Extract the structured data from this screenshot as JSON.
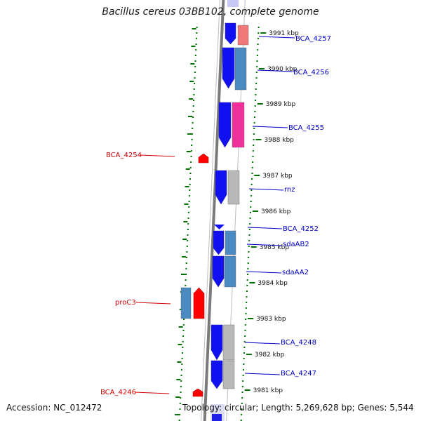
{
  "title": "Bacillus cereus 03BB102, complete genome",
  "accession": "Accession: NC_012472",
  "topology": "Topology: circular; Length: 5,269,628 bp; Genes: 5,544",
  "colors": {
    "forward_gene": "#1010f0",
    "blue_feature": "#4a8ac0",
    "pink_feature": "#f07878",
    "magenta_feature": "#f0309a",
    "gray_feature": "#b8b8b8",
    "reverse_gene": "#ff0000",
    "right_label": "#0000c8",
    "left_label": "#d00000",
    "ticks": "#007000"
  },
  "ticks": [
    "3991 kbp",
    "3990 kbp",
    "3989 kbp",
    "3988 kbp",
    "3987 kbp",
    "3986 kbp",
    "3985 kbp",
    "3984 kbp",
    "3983 kbp",
    "3982 kbp",
    "3981 kbp"
  ],
  "right_genes": [
    "BCA_4257",
    "BCA_4256",
    "BCA_4255",
    "rnz",
    "BCA_4252",
    "sdaAB2",
    "sdaAA2",
    "BCA_4248",
    "BCA_4247"
  ],
  "left_genes": [
    "BCA_4254",
    "proC3",
    "BCA_4246"
  ]
}
